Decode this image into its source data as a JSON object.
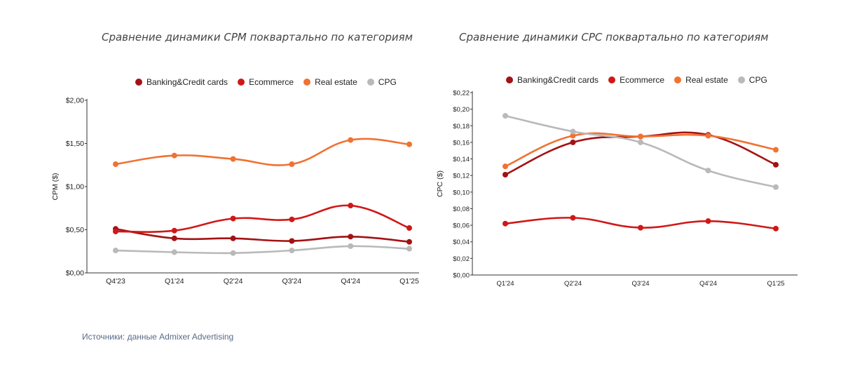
{
  "source_text": "Источники: данные Admixer Advertising",
  "colors": {
    "Banking&Credit cards": "#a31214",
    "Ecommerce": "#d01818",
    "Real estate": "#f07232",
    "CPG": "#b9b9b9"
  },
  "chart_data": [
    {
      "type": "line",
      "title": "Сравнение динамики CPM поквартально по категориям",
      "ylabel": "CPM ($)",
      "categories": [
        "Q4'23",
        "Q1'24",
        "Q2'24",
        "Q3'24",
        "Q4'24",
        "Q1'25"
      ],
      "ylim": [
        0,
        2
      ],
      "yticks": [
        {
          "value": 0,
          "label": "$0,00"
        },
        {
          "value": 0.5,
          "label": "$0,50"
        },
        {
          "value": 1,
          "label": "$1,00"
        },
        {
          "value": 1.5,
          "label": "$1,50"
        },
        {
          "value": 2,
          "label": "$2,00"
        }
      ],
      "grid": false,
      "legend_position": "top",
      "series": [
        {
          "name": "Banking&Credit cards",
          "values": [
            0.51,
            0.4,
            0.4,
            0.37,
            0.42,
            0.36
          ]
        },
        {
          "name": "Ecommerce",
          "values": [
            0.48,
            0.49,
            0.63,
            0.62,
            0.78,
            0.52
          ]
        },
        {
          "name": "Real estate",
          "values": [
            1.26,
            1.36,
            1.32,
            1.26,
            1.54,
            1.49
          ]
        },
        {
          "name": "CPG",
          "values": [
            0.26,
            0.24,
            0.23,
            0.26,
            0.31,
            0.28
          ]
        }
      ]
    },
    {
      "type": "line",
      "title": "Сравнение динамики CPC поквартально по категориям",
      "ylabel": "CPC ($)",
      "categories": [
        "Q1'24",
        "Q2'24",
        "Q3'24",
        "Q4'24",
        "Q1'25"
      ],
      "ylim": [
        0,
        0.22
      ],
      "yticks": [
        {
          "value": 0,
          "label": "$0,00"
        },
        {
          "value": 0.02,
          "label": "$0,02"
        },
        {
          "value": 0.04,
          "label": "$0,04"
        },
        {
          "value": 0.06,
          "label": "$0,06"
        },
        {
          "value": 0.08,
          "label": "$0,08"
        },
        {
          "value": 0.1,
          "label": "$0,10"
        },
        {
          "value": 0.12,
          "label": "$0,12"
        },
        {
          "value": 0.14,
          "label": "$0,14"
        },
        {
          "value": 0.16,
          "label": "$0,16"
        },
        {
          "value": 0.18,
          "label": "$0,18"
        },
        {
          "value": 0.2,
          "label": "$0,20"
        },
        {
          "value": 0.22,
          "label": "$0,22"
        }
      ],
      "grid": false,
      "legend_position": "top",
      "series": [
        {
          "name": "Banking&Credit cards",
          "values": [
            0.121,
            0.16,
            0.167,
            0.169,
            0.133
          ]
        },
        {
          "name": "Ecommerce",
          "values": [
            0.062,
            0.069,
            0.057,
            0.065,
            0.056
          ]
        },
        {
          "name": "Real estate",
          "values": [
            0.131,
            0.168,
            0.167,
            0.168,
            0.151
          ]
        },
        {
          "name": "CPG",
          "values": [
            0.192,
            0.173,
            0.16,
            0.126,
            0.106
          ]
        }
      ]
    }
  ]
}
